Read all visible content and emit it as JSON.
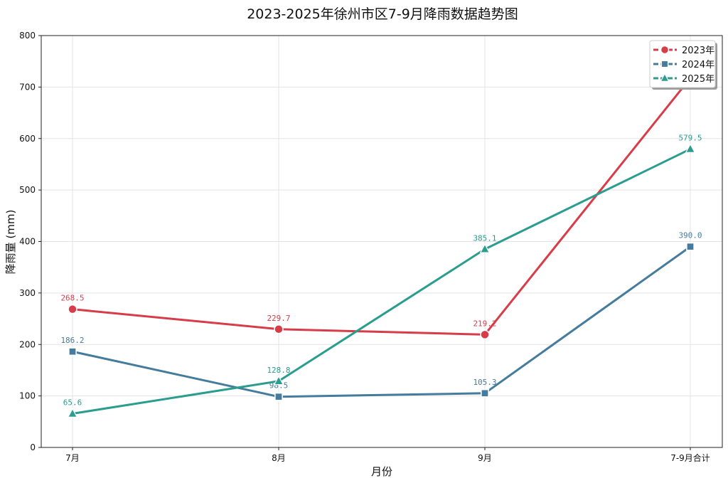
{
  "chart_data": {
    "type": "line",
    "title": "2023-2025年徐州市区7-9月降雨数据趋势图",
    "xlabel": "月份",
    "ylabel": "降雨量 (mm)",
    "categories": [
      "7月",
      "8月",
      "9月",
      "7-9月合计"
    ],
    "ylim": [
      0,
      800
    ],
    "yticks": [
      0,
      100,
      200,
      300,
      400,
      500,
      600,
      700,
      800
    ],
    "grid": true,
    "legend_position": "top-right",
    "series": [
      {
        "name": "2023年",
        "values": [
          268.5,
          229.7,
          219.2,
          717.4
        ],
        "labels": [
          "268.5",
          "229.7",
          "219.2",
          null
        ],
        "color": "#d63d49",
        "marker": "circle"
      },
      {
        "name": "2024年",
        "values": [
          186.2,
          98.5,
          105.3,
          390.0
        ],
        "labels": [
          "186.2",
          "98.5",
          "105.3",
          "390.0"
        ],
        "color": "#457b9d",
        "marker": "square"
      },
      {
        "name": "2025年",
        "values": [
          65.6,
          128.8,
          385.1,
          579.5
        ],
        "labels": [
          "65.6",
          "128.8",
          "385.1",
          "579.5"
        ],
        "color": "#2a9d8f",
        "marker": "triangle"
      }
    ]
  }
}
